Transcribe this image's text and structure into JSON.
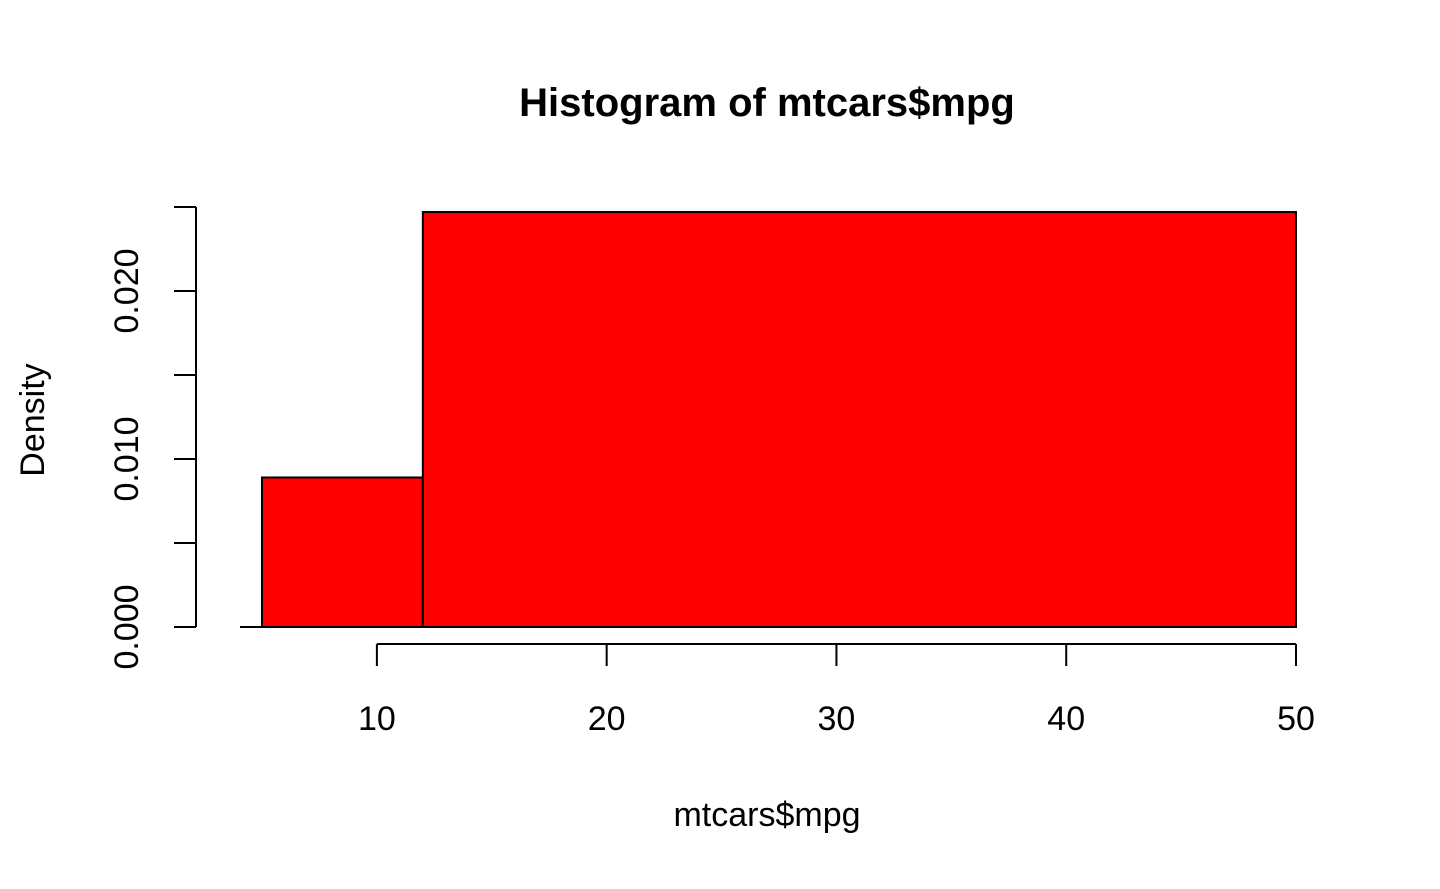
{
  "chart_data": {
    "type": "bar",
    "title": "Histogram of mtcars$mpg",
    "xlabel": "mtcars$mpg",
    "ylabel": "Density",
    "bins": [
      {
        "start": 5,
        "end": 12,
        "density": 0.0089
      },
      {
        "start": 12,
        "end": 50,
        "density": 0.0247
      }
    ],
    "xlim": [
      5,
      50
    ],
    "ylim": [
      0,
      0.025
    ],
    "x_ticks": [
      10,
      20,
      30,
      40,
      50
    ],
    "y_ticks": [
      0,
      0.005,
      0.01,
      0.015,
      0.02,
      0.025
    ],
    "y_tick_labels": [
      {
        "value": 0,
        "label": "0.000"
      },
      {
        "value": 0.01,
        "label": "0.010"
      },
      {
        "value": 0.02,
        "label": "0.020"
      }
    ],
    "bar_color": "#ff0000",
    "border_color": "#000000",
    "grid": false,
    "legend": "none"
  }
}
